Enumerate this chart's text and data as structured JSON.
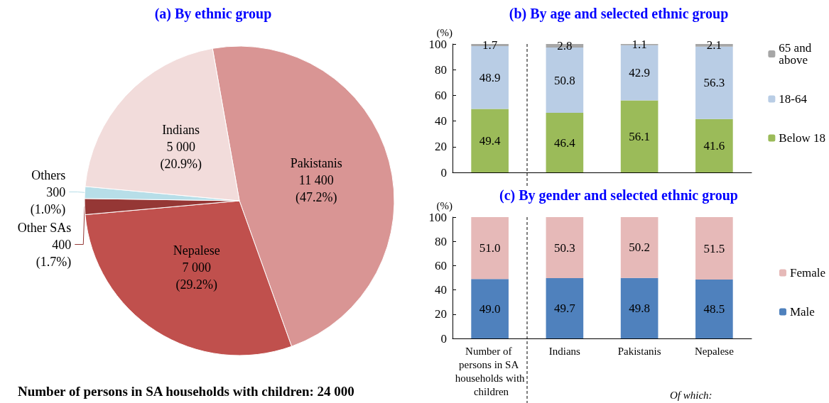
{
  "chart_data": [
    {
      "type": "pie",
      "title": "(a) By ethnic group",
      "categories": [
        "Pakistanis",
        "Nepalese",
        "Other SAs",
        "Others",
        "Indians"
      ],
      "values": [
        11400,
        7000,
        400,
        300,
        5000
      ],
      "colors": [
        "#d99594",
        "#c0504d",
        "#953735",
        "#b7dee8",
        "#f2dcdb"
      ],
      "value_labels": [
        "11 400\n(47.2%)",
        "7 000\n(29.2%)",
        "400\n(1.7%)",
        "300\n(1.0%)",
        "5 000\n(20.9%)"
      ],
      "annotations": [
        "Number of persons in SA households with children: 24 000"
      ]
    },
    {
      "type": "bar",
      "stacked": true,
      "title": "(b) By age and selected ethnic group",
      "ylabel": "(%)",
      "categories": [
        "Number of persons in SA households with children",
        "Indians",
        "Pakistanis",
        "Nepalese"
      ],
      "series": [
        {
          "name": "Below 18",
          "color": "#9bbb59",
          "values": [
            49.4,
            46.4,
            56.1,
            41.6
          ],
          "value_labels": [
            "49.4",
            "46.4",
            "56.1",
            "41.6"
          ]
        },
        {
          "name": "18-64",
          "color": "#b9cde5",
          "values": [
            48.9,
            50.8,
            42.9,
            56.3
          ],
          "value_labels": [
            "48.9",
            "50.8",
            "42.9",
            "56.3"
          ]
        },
        {
          "name": "65 and above",
          "color": "#a6a6a6",
          "values": [
            1.7,
            2.8,
            1.1,
            2.1
          ],
          "value_labels": [
            "1.7",
            "2.8",
            "1.1",
            "2.1"
          ]
        }
      ],
      "ylim": [
        0,
        100
      ],
      "yticks": [
        0,
        20,
        40,
        60,
        80,
        100
      ],
      "legend": "right",
      "tick_labels": "y",
      "grid": false
    },
    {
      "type": "bar",
      "stacked": true,
      "title": "(c) By gender and selected ethnic group",
      "ylabel": "(%)",
      "categories": [
        "Number of persons in SA households with children",
        "Indians",
        "Pakistanis",
        "Nepalese"
      ],
      "series": [
        {
          "name": "Male",
          "color": "#4f81bd",
          "values": [
            49.0,
            49.7,
            49.8,
            48.5
          ],
          "value_labels": [
            "49.0",
            "49.7",
            "49.8",
            "48.5"
          ]
        },
        {
          "name": "Female",
          "color": "#e6b9b8",
          "values": [
            51.0,
            50.3,
            50.2,
            51.5
          ],
          "value_labels": [
            "51.0",
            "50.3",
            "50.2",
            "51.5"
          ]
        }
      ],
      "ylim": [
        0,
        100
      ],
      "yticks": [
        0,
        20,
        40,
        60,
        80,
        100
      ],
      "legend": "right",
      "grid": false,
      "annotations": [
        "Of which:"
      ]
    }
  ]
}
